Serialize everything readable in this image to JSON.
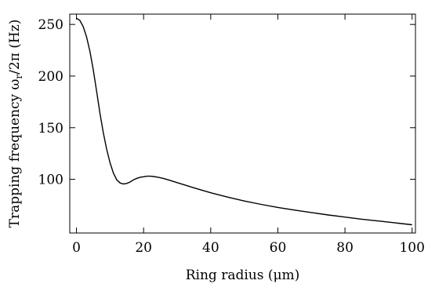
{
  "chart_data": {
    "type": "line",
    "xlabel": "Ring radius (μm)",
    "ylabel": "Trapping frequency ωr/2π (Hz)",
    "ylabel_parts": {
      "before": "Trapping frequency ω",
      "sub": "r",
      "after": "/2π (Hz)"
    },
    "xlim": [
      -2,
      101
    ],
    "ylim": [
      48,
      260
    ],
    "xticks": [
      0,
      20,
      40,
      60,
      80,
      100
    ],
    "xtick_labels": [
      "0",
      "20",
      "40",
      "60",
      "80",
      "100"
    ],
    "yticks": [
      100,
      150,
      200,
      250
    ],
    "ytick_labels": [
      "100",
      "150",
      "200",
      "250"
    ],
    "grid": false,
    "series": [
      {
        "x": [
          0,
          1,
          2,
          3,
          4,
          5,
          6,
          7,
          8,
          9,
          10,
          11,
          12,
          13,
          14,
          15,
          16,
          17,
          18,
          19,
          20,
          21,
          22,
          23,
          24,
          25,
          26,
          27,
          28,
          30,
          32,
          35,
          40,
          45,
          50,
          55,
          60,
          65,
          70,
          75,
          80,
          85,
          90,
          95,
          100
        ],
        "y": [
          256,
          254,
          248,
          238,
          224,
          206,
          185,
          164,
          145,
          129,
          116,
          106,
          99.5,
          96.5,
          95.5,
          96,
          97.5,
          99.5,
          101,
          102,
          102.5,
          103,
          103,
          102.7,
          102.2,
          101.5,
          100.7,
          99.8,
          98.8,
          96.8,
          94.8,
          91.8,
          87,
          82.8,
          79,
          75.7,
          72.8,
          70.2,
          67.8,
          65.5,
          63.4,
          61.4,
          59.6,
          57.8,
          56
        ]
      }
    ]
  }
}
